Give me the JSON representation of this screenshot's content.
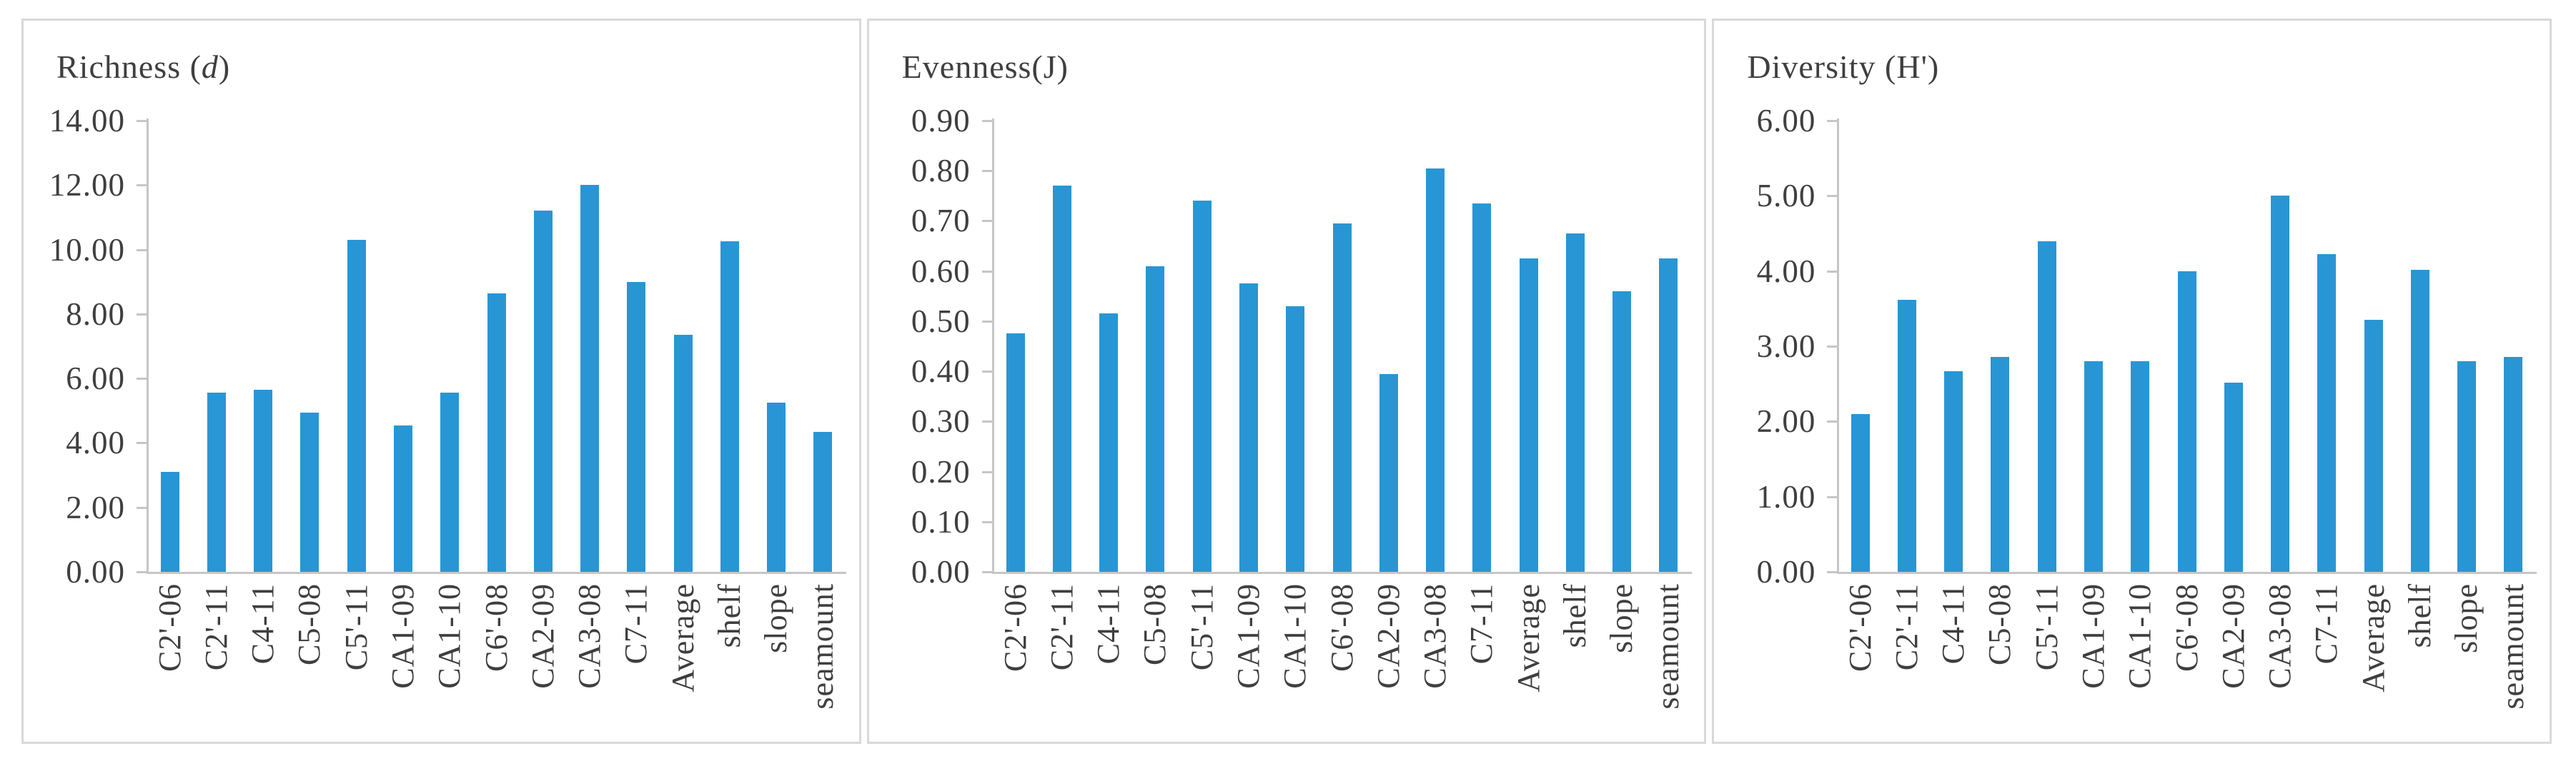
{
  "figure": {
    "bar_color": "#2896D4",
    "axis_color": "#C6C6C6",
    "text_color": "#3F3F3F",
    "panel_border_color": "#D9D9D9",
    "background_color": "#FFFFFF"
  },
  "categories": [
    "C2'-06",
    "C2'-11",
    "C4-11",
    "C5-08",
    "C5'-11",
    "CA1-09",
    "CA1-10",
    "C6'-08",
    "CA2-09",
    "CA3-08",
    "C7-11",
    "Average",
    "shelf",
    "slope",
    "seamount"
  ],
  "chart_data": [
    {
      "type": "bar",
      "title": "Richness (d)",
      "title_prefix": "Richness (",
      "title_italic": "d",
      "title_suffix": ")",
      "xlabel": "",
      "ylabel": "",
      "ylim": [
        0,
        14
      ],
      "ytick_step": 2,
      "ytick_decimals": 2,
      "grid": false,
      "legend": "none",
      "categories": [
        "C2'-06",
        "C2'-11",
        "C4-11",
        "C5-08",
        "C5'-11",
        "CA1-09",
        "CA1-10",
        "C6'-08",
        "CA2-09",
        "CA3-08",
        "C7-11",
        "Average",
        "shelf",
        "slope",
        "seamount"
      ],
      "values": [
        3.1,
        5.55,
        5.65,
        4.95,
        10.3,
        4.55,
        5.55,
        8.65,
        11.2,
        12.0,
        9.0,
        7.35,
        10.25,
        5.25,
        4.35
      ]
    },
    {
      "type": "bar",
      "title": "Evenness(J)",
      "title_prefix": "Evenness(J)",
      "title_italic": "",
      "title_suffix": "",
      "xlabel": "",
      "ylabel": "",
      "ylim": [
        0,
        0.9
      ],
      "ytick_step": 0.1,
      "ytick_decimals": 2,
      "grid": false,
      "legend": "none",
      "categories": [
        "C2'-06",
        "C2'-11",
        "C4-11",
        "C5-08",
        "C5'-11",
        "CA1-09",
        "CA1-10",
        "C6'-08",
        "CA2-09",
        "CA3-08",
        "C7-11",
        "Average",
        "shelf",
        "slope",
        "seamount"
      ],
      "values": [
        0.475,
        0.77,
        0.515,
        0.61,
        0.74,
        0.575,
        0.53,
        0.695,
        0.395,
        0.805,
        0.735,
        0.625,
        0.675,
        0.56,
        0.625
      ]
    },
    {
      "type": "bar",
      "title": "Diversity (H')",
      "title_prefix": "Diversity (H')",
      "title_italic": "",
      "title_suffix": "",
      "xlabel": "",
      "ylabel": "",
      "ylim": [
        0,
        6
      ],
      "ytick_step": 1,
      "ytick_decimals": 2,
      "grid": false,
      "legend": "none",
      "categories": [
        "C2'-06",
        "C2'-11",
        "C4-11",
        "C5-08",
        "C5'-11",
        "CA1-09",
        "CA1-10",
        "C6'-08",
        "CA2-09",
        "CA3-08",
        "C7-11",
        "Average",
        "shelf",
        "slope",
        "seamount"
      ],
      "values": [
        2.1,
        3.62,
        2.67,
        2.86,
        4.4,
        2.8,
        2.8,
        4.0,
        2.52,
        5.0,
        4.22,
        3.35,
        4.02,
        2.8,
        2.86
      ]
    }
  ]
}
